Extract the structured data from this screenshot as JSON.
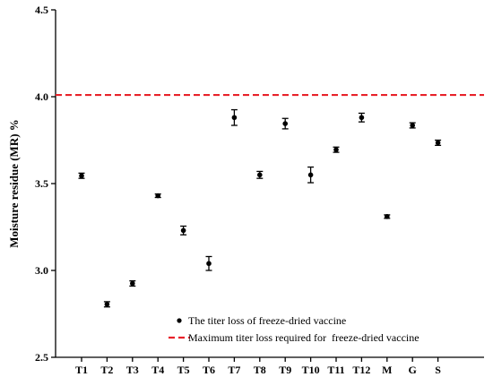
{
  "chart_data": {
    "type": "scatter",
    "ylabel": "Moisture residue (MR) %",
    "xlabel": "",
    "ylim": [
      2.5,
      4.5
    ],
    "yticks": [
      "2.5",
      "3.0",
      "3.5",
      "4.0",
      "4.5"
    ],
    "yticks_values": [
      2.5,
      3.0,
      3.5,
      4.0,
      4.5
    ],
    "categories": [
      "T1",
      "T2",
      "T3",
      "T4",
      "T5",
      "T6",
      "T7",
      "T8",
      "T9",
      "T10",
      "T11",
      "T12",
      "M",
      "G",
      "S"
    ],
    "series": [
      {
        "name": "The titer loss of freeze-dried vaccine",
        "values": [
          3.545,
          2.805,
          2.925,
          3.43,
          3.23,
          3.04,
          3.88,
          3.55,
          3.845,
          3.55,
          3.695,
          3.88,
          3.31,
          3.835,
          3.735
        ],
        "errors": [
          0.015,
          0.015,
          0.015,
          0.01,
          0.025,
          0.04,
          0.045,
          0.02,
          0.03,
          0.045,
          0.015,
          0.025,
          0.01,
          0.015,
          0.015
        ]
      }
    ],
    "reference_line": {
      "name": "Maximum titer loss required for  freeze-dried vaccine",
      "value": 4.01,
      "color": "#e8222a",
      "style": "dashed"
    },
    "grid": false,
    "legend_position": "bottom-center"
  }
}
